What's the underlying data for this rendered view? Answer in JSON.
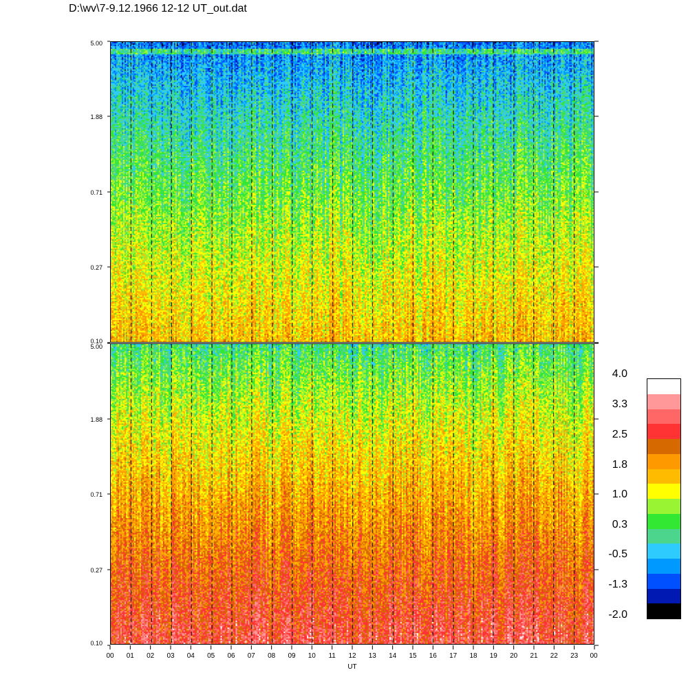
{
  "title": "D:\\wv\\7-9.12.1966  12-12 UT_out.dat",
  "colors": {
    "scale": [
      "#000000",
      "#0019b3",
      "#0050ff",
      "#0099ff",
      "#2ecbff",
      "#4cd58c",
      "#33e833",
      "#99f533",
      "#ffff00",
      "#ffbb00",
      "#ff9900",
      "#d66a00",
      "#ff3333",
      "#ff6666",
      "#ff9999",
      "#ffffff"
    ]
  },
  "chart_data": [
    {
      "type": "heatmap",
      "panel": "top",
      "y_ticks": [
        "5.00",
        "1.88",
        "0.71",
        "0.27",
        "0.10"
      ],
      "ylim": [
        0.1,
        5.0
      ],
      "y_scale": "log",
      "x_ticks": [
        "00",
        "01",
        "02",
        "03",
        "04",
        "05",
        "06",
        "07",
        "08",
        "09",
        "10",
        "11",
        "12",
        "13",
        "14",
        "15",
        "16",
        "17",
        "18",
        "19",
        "20",
        "21",
        "22",
        "23",
        "00"
      ],
      "value_range_approx": [
        -1.3,
        2.0
      ],
      "pattern": "high frequencies blue-cyan, low frequencies yellow-orange"
    },
    {
      "type": "heatmap",
      "panel": "bottom",
      "y_ticks": [
        "5.00",
        "1.88",
        "0.71",
        "0.27",
        "0.10"
      ],
      "ylim": [
        0.1,
        5.0
      ],
      "y_scale": "log",
      "x_ticks": [
        "00",
        "01",
        "02",
        "03",
        "04",
        "05",
        "06",
        "07",
        "08",
        "09",
        "10",
        "11",
        "12",
        "13",
        "14",
        "15",
        "16",
        "17",
        "18",
        "19",
        "20",
        "21",
        "22",
        "23",
        "00"
      ],
      "xlabel": "UT",
      "value_range_approx": [
        -0.5,
        3.3
      ],
      "pattern": "high frequencies cyan-green, low frequencies orange-red"
    }
  ],
  "colorbar": {
    "labels": [
      "4.0",
      "3.3",
      "2.5",
      "1.8",
      "1.0",
      "0.3",
      "-0.5",
      "-1.3",
      "-2.0"
    ],
    "range": [
      -2.0,
      4.0
    ]
  }
}
